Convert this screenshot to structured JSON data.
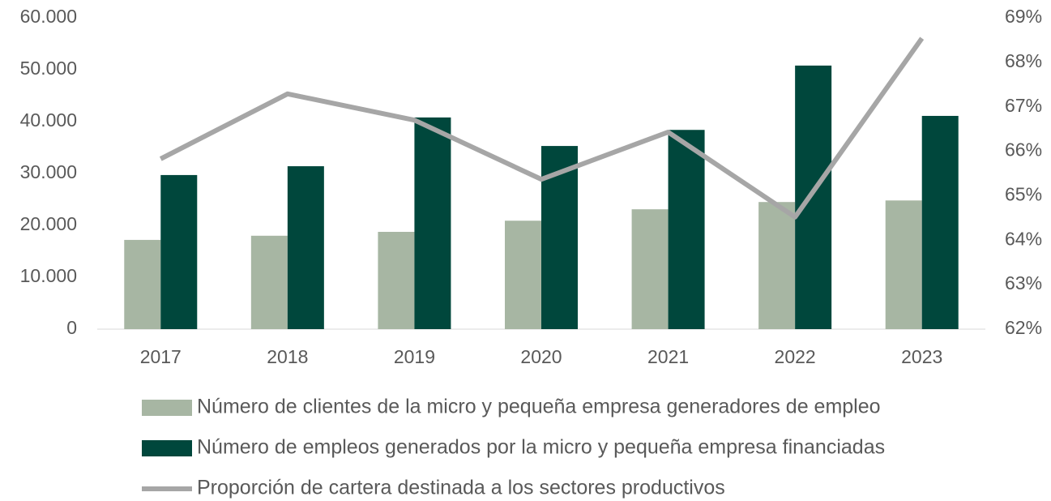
{
  "chart_data": {
    "type": "bar",
    "categories": [
      "2017",
      "2018",
      "2019",
      "2020",
      "2021",
      "2022",
      "2023"
    ],
    "series": [
      {
        "name": "Número de clientes de la micro y pequeña empresa generadores de empleo",
        "color": "#a7b6a3",
        "type": "bar",
        "values": [
          17200,
          18000,
          18750,
          20900,
          23100,
          24500,
          24800
        ]
      },
      {
        "name": "Número de empleos generados por la micro y pequeña empresa financiadas",
        "color": "#00473c",
        "type": "bar",
        "values": [
          29700,
          31400,
          40800,
          35300,
          38400,
          50800,
          41100
        ]
      },
      {
        "name": "Proporción de cartera destinada a los sectores productivos",
        "color": "#a6a6a6",
        "type": "line",
        "axis": "y2",
        "values": [
          65.83,
          67.29,
          66.7,
          65.37,
          66.43,
          64.52,
          68.54
        ]
      }
    ],
    "ylim": [
      0,
      60000
    ],
    "yticks": [
      0,
      {
        "value": 10000,
        "label": "10.000"
      },
      {
        "value": 20000,
        "label": "20.000"
      },
      {
        "value": 30000,
        "label": "30.000"
      },
      {
        "value": 40000,
        "label": "40.000"
      },
      {
        "value": 50000,
        "label": "50.000"
      },
      {
        "value": 60000,
        "label": "60.000"
      }
    ],
    "y2lim": [
      62,
      69
    ],
    "y2ticks": [
      {
        "value": 62,
        "label": "62%"
      },
      {
        "value": 63,
        "label": "63%"
      },
      {
        "value": 64,
        "label": "64%"
      },
      {
        "value": 65,
        "label": "65%"
      },
      {
        "value": 66,
        "label": "66%"
      },
      {
        "value": 67,
        "label": "67%"
      },
      {
        "value": 68,
        "label": "68%"
      },
      {
        "value": 69,
        "label": "69%"
      }
    ],
    "grid": false,
    "legend": "bottom"
  }
}
